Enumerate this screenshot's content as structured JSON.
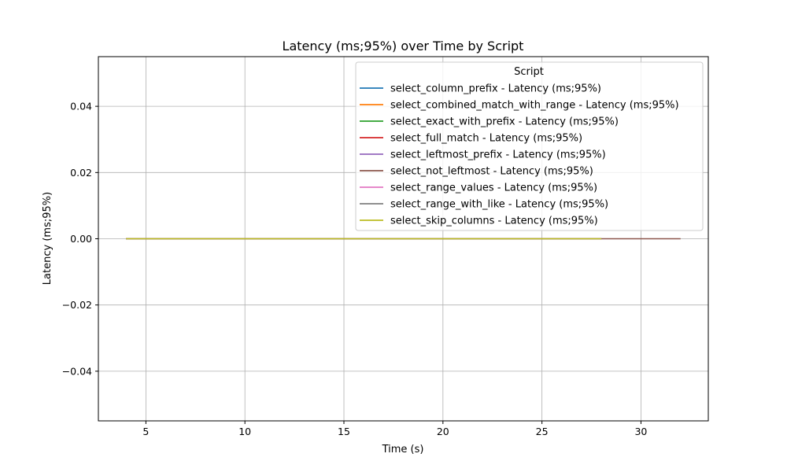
{
  "chart_data": {
    "type": "line",
    "title": "Latency (ms;95%) over Time by Script",
    "xlabel": "Time (s)",
    "ylabel": "Latency (ms;95%)",
    "xlim": [
      2.6,
      33.4
    ],
    "ylim": [
      -0.055,
      0.055
    ],
    "xticks": [
      5,
      10,
      15,
      20,
      25,
      30
    ],
    "yticks": [
      -0.04,
      -0.02,
      0.0,
      0.02,
      0.04
    ],
    "ytick_labels": [
      "−0.04",
      "−0.02",
      "0.00",
      "0.02",
      "0.04"
    ],
    "grid": true,
    "legend": {
      "title": "Script",
      "placement": "top-right"
    },
    "series": [
      {
        "name": "select_column_prefix - Latency (ms;95%)",
        "color": "#1f77b4",
        "x": [
          4,
          28
        ],
        "y": [
          0,
          0
        ]
      },
      {
        "name": "select_combined_match_with_range - Latency (ms;95%)",
        "color": "#ff7f0e",
        "x": [
          4,
          28
        ],
        "y": [
          0,
          0
        ]
      },
      {
        "name": "select_exact_with_prefix - Latency (ms;95%)",
        "color": "#2ca02c",
        "x": [
          4,
          28
        ],
        "y": [
          0,
          0
        ]
      },
      {
        "name": "select_full_match - Latency (ms;95%)",
        "color": "#d62728",
        "x": [
          4,
          28
        ],
        "y": [
          0,
          0
        ]
      },
      {
        "name": "select_leftmost_prefix - Latency (ms;95%)",
        "color": "#9467bd",
        "x": [
          4,
          28
        ],
        "y": [
          0,
          0
        ]
      },
      {
        "name": "select_not_leftmost - Latency (ms;95%)",
        "color": "#8c564b",
        "x": [
          4,
          32
        ],
        "y": [
          0,
          0
        ]
      },
      {
        "name": "select_range_values - Latency (ms;95%)",
        "color": "#e377c2",
        "x": [
          4,
          28
        ],
        "y": [
          0,
          0
        ]
      },
      {
        "name": "select_range_with_like - Latency (ms;95%)",
        "color": "#7f7f7f",
        "x": [
          4,
          28
        ],
        "y": [
          0,
          0
        ]
      },
      {
        "name": "select_skip_columns - Latency (ms;95%)",
        "color": "#bcbd22",
        "x": [
          4,
          28
        ],
        "y": [
          0,
          0
        ]
      }
    ]
  }
}
